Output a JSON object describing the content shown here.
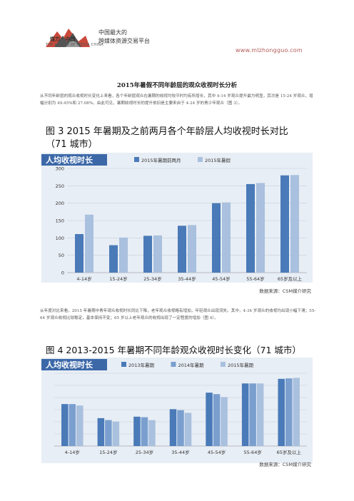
{
  "header": {
    "logo_brand": "煤力 · 中国",
    "logo_subtitle": "THE POWER OF MEDIA CHINA",
    "tagline_1": "中国最大的",
    "tagline_2": "跨媒体资源交易平台",
    "site_url": "www.mlzhongguo.com"
  },
  "article": {
    "title": "2015年暑假不同年龄层的观众收视时长分析",
    "paragraph_1": "从不同年龄层的观众收视时长变化上来看，各个年龄层观众在暑期的收视均较平时均有所增长，其中 4-14 岁观众提升最为明显，其次是 15-24 岁观众，增幅分别为 49.45%和 27.08%，由此可见，暑期收视时长的提升依旧是主要来自于 4-24 岁的青少年观众（图 3）。",
    "paragraph_2": "从年度对比来看，2015 年暑期中青年观众收视时长同比下降，老年观众收视略有增加，年轻观众出现流失。其中，4-34 岁观众的收视均出现小幅下滑；55-64 岁观众收视比较稳定，基本保持不变；65 岁以上老年观众的收视出现了一定程度的增加（图 4）。"
  },
  "colors": {
    "dark_bar": "#4a7ab8",
    "mid_bar": "#7a9fcf",
    "light_bar": "#a9c0de",
    "panel_bg": "#e8eef5",
    "subtitle_bg": "#3c68a8"
  },
  "chart_data": [
    {
      "type": "bar",
      "title": "图 3 2015 年暑期及之前两月各个年龄层人均收视时长对比（71 城市）",
      "subtitle": "人均收视时长",
      "categories": [
        "4-14岁",
        "15-24岁",
        "25-34岁",
        "35-44岁",
        "45-54岁",
        "55-64岁",
        "65岁及以上"
      ],
      "series": [
        {
          "name": "2015年暑期前两月",
          "values": [
            111,
            79,
            106,
            135,
            200,
            255,
            280
          ]
        },
        {
          "name": "2015年暑假",
          "values": [
            167,
            101,
            107,
            137,
            202,
            258,
            281
          ]
        }
      ],
      "ylim": [
        0,
        300
      ],
      "yticks": [
        0,
        50,
        100,
        150,
        200,
        250,
        300
      ],
      "grid": true,
      "legend": "top",
      "source": "数据来源：CSM媒介研究"
    },
    {
      "type": "bar",
      "title": "图 4 2013-2015 年暑期不同年龄观众收视时长变化（71 城市）",
      "subtitle": "人均收视时长",
      "categories": [
        "4-14岁",
        "15-24岁",
        "25-34岁",
        "35-44岁",
        "45-54岁",
        "55-64岁",
        "65岁及以上"
      ],
      "series": [
        {
          "name": "2013年暑期",
          "values": [
            173,
            115,
            121,
            152,
            220,
            258,
            277
          ]
        },
        {
          "name": "2014年暑期",
          "values": [
            173,
            107,
            119,
            148,
            214,
            258,
            279
          ]
        },
        {
          "name": "2015年暑期",
          "values": [
            167,
            101,
            107,
            137,
            202,
            258,
            281
          ]
        }
      ],
      "ylim": [
        0,
        300
      ],
      "grid": true,
      "legend": "top",
      "source": "数据来源：CSM媒介研究"
    }
  ]
}
